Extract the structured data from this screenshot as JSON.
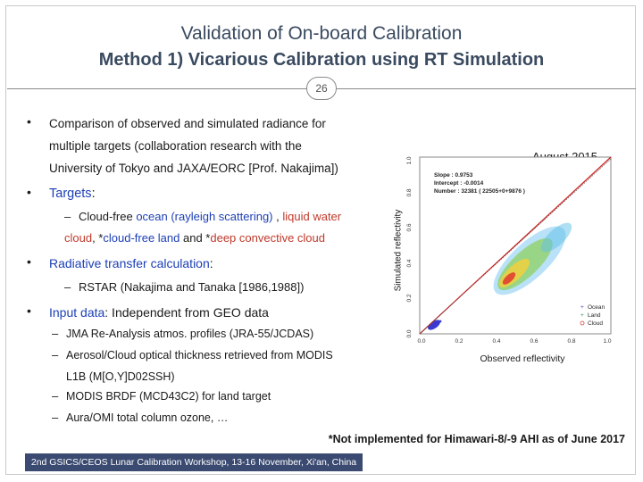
{
  "slide": {
    "title_line1": "Validation of On-board Calibration",
    "title_line2": "Method 1) Vicarious Calibration using RT Simulation",
    "page_number": "26"
  },
  "bullets": {
    "b1_line1": "Comparison of observed and simulated radiance for",
    "b1_line2": "multiple targets (collaboration research with the",
    "b1_line3": "University of Tokyo and JAXA/EORC [Prof. Nakajima])",
    "b2_label": "Targets",
    "b2_colon": ":",
    "b2_sub_a": "Cloud-free ",
    "b2_sub_ocean": "ocean (rayleigh scattering)",
    "b2_sub_b": " ,  ",
    "b2_sub_lwc1": "liquid water",
    "b2_sub_lwc2": "cloud",
    "b2_sub_c": ", *",
    "b2_sub_land": "cloud-free land",
    "b2_sub_d": " and *",
    "b2_sub_deep": "deep convective cloud",
    "b3_label": "Radiative transfer calculation",
    "b3_colon": ":",
    "b3_sub": "RSTAR (Nakajima and Tanaka [1986,1988])",
    "b4_label": "Input data",
    "b4_rest": ": Independent from GEO data",
    "b4_sub1": "JMA Re-Analysis atmos. profiles (JRA-55/JCDAS)",
    "b4_sub2_line1": "Aerosol/Cloud optical thickness retrieved from MODIS",
    "b4_sub2_line2": "L1B (M[O,Y]D02SSH)",
    "b4_sub3": "MODIS BRDF (MCD43C2) for land target",
    "b4_sub4": "Aura/OMI total column ozone, …"
  },
  "figure": {
    "date_label": "August 2015",
    "ylabel": "Simulated reflectivity",
    "xlabel": "Observed reflectivity",
    "stats_line1": "Slope    : 0.9753",
    "stats_line2": "Intercept : -0.0014",
    "stats_line3": "Number   : 32381 ( 22505+0+9876 )",
    "legend_ocean": "Ocean",
    "legend_land": "Land",
    "legend_cloud": "Cloud",
    "x_ticks": [
      "0.0",
      "0.2",
      "0.4",
      "0.6",
      "0.8",
      "1.0"
    ],
    "y_ticks": [
      "0.0",
      "0.2",
      "0.4",
      "0.6",
      "0.8",
      "1.0"
    ],
    "colors": {
      "ocean": "#3a3ad0",
      "land": "#2a9a3a",
      "cloud": "#d04040",
      "fit_line": "#d02020"
    }
  },
  "footnote": "*Not implemented for Himawari-8/-9 AHI as of June 2017",
  "footer": "2nd GSICS/CEOS Lunar Calibration Workshop, 13-16 November, Xi'an, China"
}
